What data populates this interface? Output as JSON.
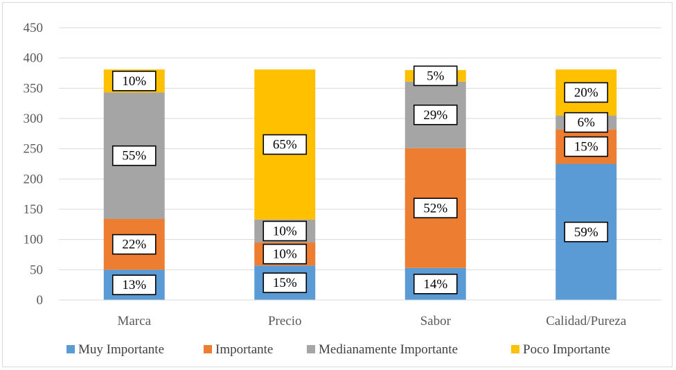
{
  "chart_data": {
    "type": "bar",
    "stacked": true,
    "categories": [
      "Marca",
      "Precio",
      "Sabor",
      "Calidad/Pureza"
    ],
    "ylim": [
      0,
      450
    ],
    "yticks": [
      0,
      50,
      100,
      150,
      200,
      250,
      300,
      350,
      400,
      450
    ],
    "grid": true,
    "legend_position": "bottom",
    "series": [
      {
        "name": "Muy Importante",
        "color": "#5b9bd5",
        "values": [
          50,
          57,
          53,
          225
        ],
        "labels": [
          "13%",
          "15%",
          "14%",
          "59%"
        ]
      },
      {
        "name": "Importante",
        "color": "#ed7d31",
        "values": [
          84,
          38,
          198,
          57
        ],
        "labels": [
          "22%",
          "10%",
          "52%",
          "15%"
        ]
      },
      {
        "name": "Medianamente Importante",
        "color": "#a5a5a5",
        "values": [
          209,
          38,
          110,
          23
        ],
        "labels": [
          "55%",
          "10%",
          "29%",
          "6%"
        ]
      },
      {
        "name": "Poco Importante",
        "color": "#ffc000",
        "values": [
          38,
          248,
          19,
          76
        ],
        "labels": [
          "10%",
          "65%",
          "5%",
          "20%"
        ]
      }
    ]
  }
}
